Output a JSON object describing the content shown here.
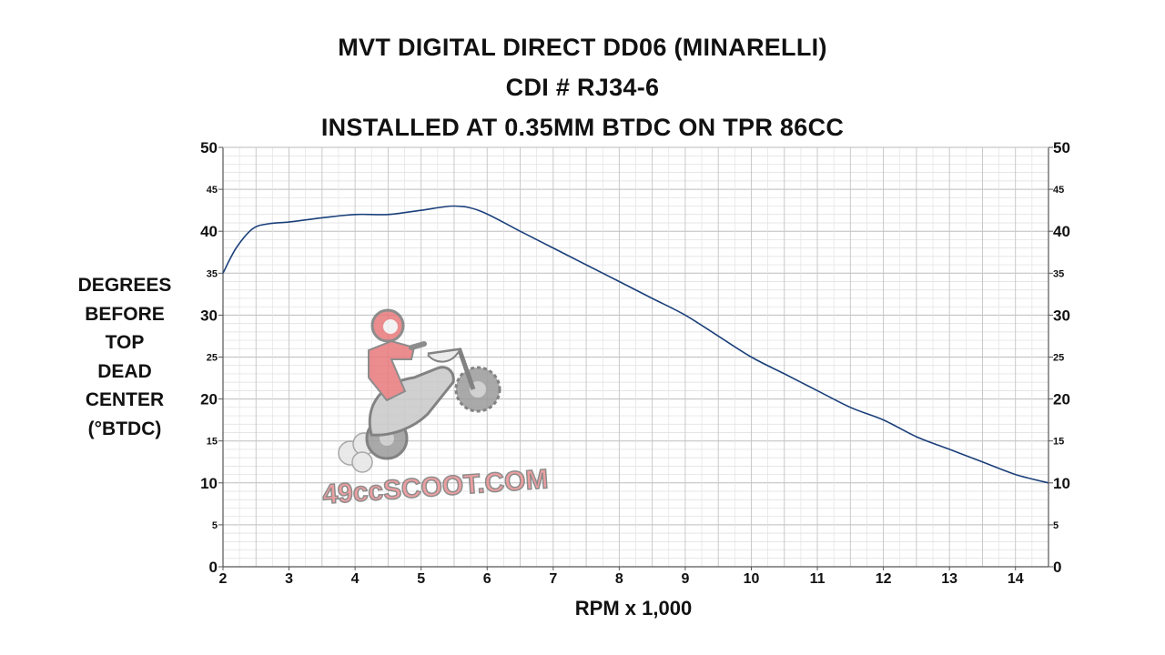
{
  "chart_data": {
    "type": "line",
    "title": [
      "MVT DIGITAL DIRECT DD06 (MINARELLI)",
      "CDI # RJ34-6",
      "INSTALLED AT 0.35MM BTDC ON TPR 86CC"
    ],
    "xlabel": "RPM x 1,000",
    "ylabel": [
      "DEGREES",
      "BEFORE",
      "TOP",
      "DEAD",
      "CENTER",
      "(°BTDC)"
    ],
    "xlim": [
      2,
      14.5
    ],
    "ylim": [
      0,
      50
    ],
    "x_ticks": [
      2,
      3,
      4,
      5,
      6,
      7,
      8,
      9,
      10,
      11,
      12,
      13,
      14
    ],
    "y_ticks_major": [
      0,
      10,
      20,
      30,
      40,
      50
    ],
    "y_ticks_minor": [
      5,
      15,
      25,
      35,
      45
    ],
    "grid": true,
    "series": [
      {
        "name": "",
        "color": "#1a3f7a",
        "points": [
          [
            2.0,
            35.0
          ],
          [
            2.2,
            38.0
          ],
          [
            2.45,
            40.3
          ],
          [
            2.7,
            40.9
          ],
          [
            3.0,
            41.1
          ],
          [
            3.5,
            41.6
          ],
          [
            4.0,
            42.0
          ],
          [
            4.5,
            42.0
          ],
          [
            5.0,
            42.5
          ],
          [
            5.5,
            43.0
          ],
          [
            5.9,
            42.4
          ],
          [
            6.5,
            40.0
          ],
          [
            7.0,
            38.0
          ],
          [
            7.5,
            36.0
          ],
          [
            8.0,
            34.0
          ],
          [
            8.5,
            32.0
          ],
          [
            9.0,
            30.0
          ],
          [
            9.5,
            27.5
          ],
          [
            10.0,
            25.0
          ],
          [
            10.5,
            23.0
          ],
          [
            11.0,
            21.0
          ],
          [
            11.5,
            19.0
          ],
          [
            12.0,
            17.5
          ],
          [
            12.5,
            15.5
          ],
          [
            13.0,
            14.0
          ],
          [
            13.5,
            12.5
          ],
          [
            14.0,
            11.0
          ],
          [
            14.5,
            10.0
          ]
        ]
      }
    ]
  },
  "watermark": {
    "text": "49ccSCOOT.COM",
    "icon": "rider-wheelie-icon"
  }
}
